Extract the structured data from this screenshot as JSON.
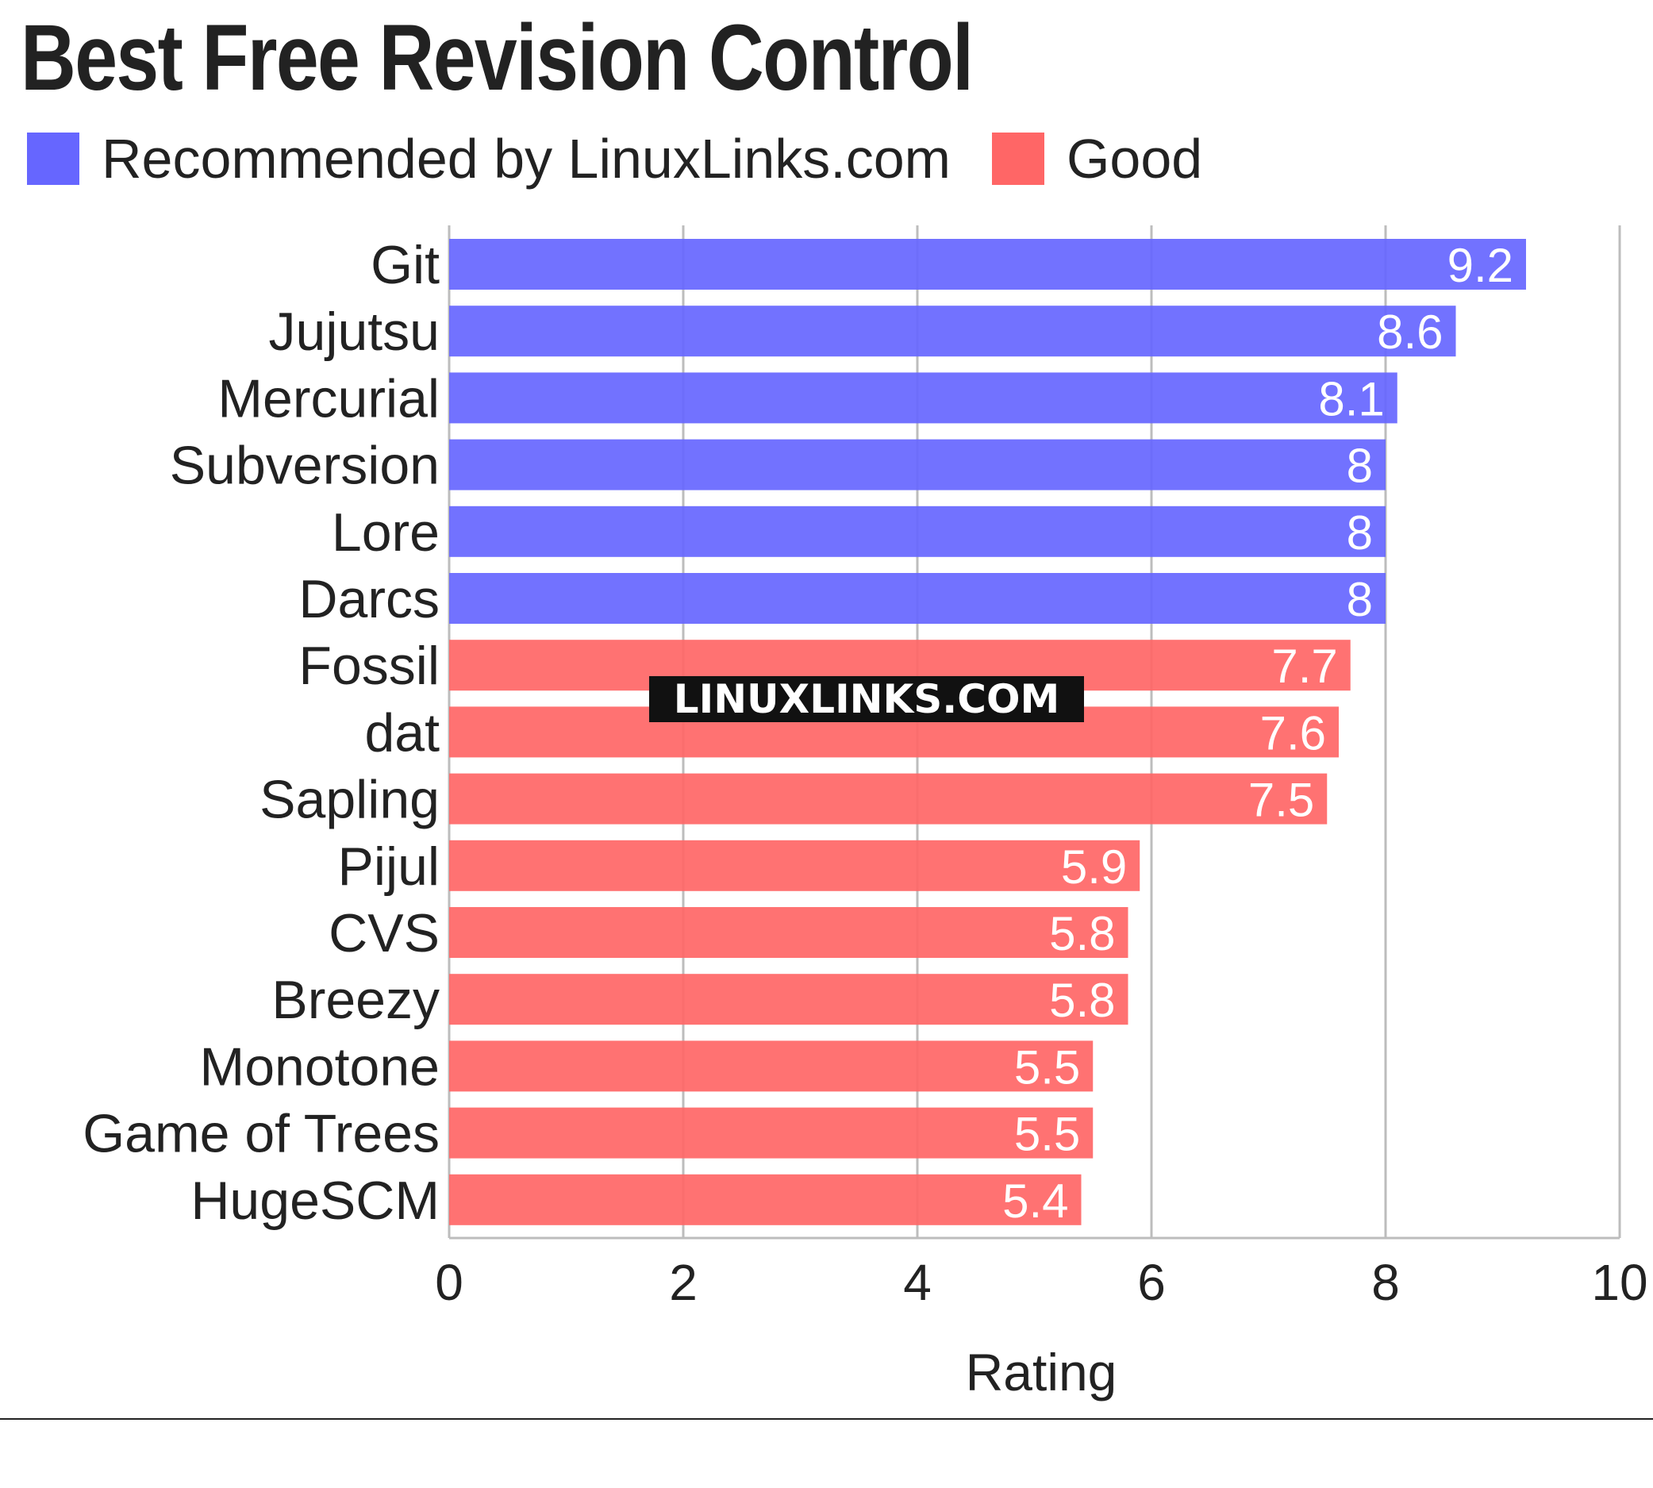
{
  "chart_data": {
    "type": "bar",
    "orientation": "horizontal",
    "title": "Best Free Revision Control",
    "xlabel": "Rating",
    "ylabel": "",
    "xlim": [
      0,
      10
    ],
    "xticks": [
      "0",
      "2",
      "4",
      "6",
      "8",
      "10"
    ],
    "grid": true,
    "legend_position": "top-left",
    "series": [
      {
        "name": "Recommended by LinuxLinks.com",
        "color": "#6666ff"
      },
      {
        "name": "Good",
        "color": "#ff6666"
      }
    ],
    "categories": [
      "Git",
      "Jujutsu",
      "Mercurial",
      "Subversion",
      "Lore",
      "Darcs",
      "Fossil",
      "dat",
      "Sapling",
      "Pijul",
      "CVS",
      "Breezy",
      "Monotone",
      "Game of Trees",
      "HugeSCM"
    ],
    "values": [
      9.2,
      8.6,
      8.1,
      8,
      8,
      8,
      7.7,
      7.6,
      7.5,
      5.9,
      5.8,
      5.8,
      5.5,
      5.5,
      5.4
    ],
    "value_labels": [
      "9.2",
      "8.6",
      "8.1",
      "8",
      "8",
      "8",
      "7.7",
      "7.6",
      "7.5",
      "5.9",
      "5.8",
      "5.8",
      "5.5",
      "5.5",
      "5.4"
    ],
    "bar_series": [
      "Recommended by LinuxLinks.com",
      "Recommended by LinuxLinks.com",
      "Recommended by LinuxLinks.com",
      "Recommended by LinuxLinks.com",
      "Recommended by LinuxLinks.com",
      "Recommended by LinuxLinks.com",
      "Good",
      "Good",
      "Good",
      "Good",
      "Good",
      "Good",
      "Good",
      "Good",
      "Good"
    ]
  },
  "watermark": "LINUXLINKS.COM"
}
